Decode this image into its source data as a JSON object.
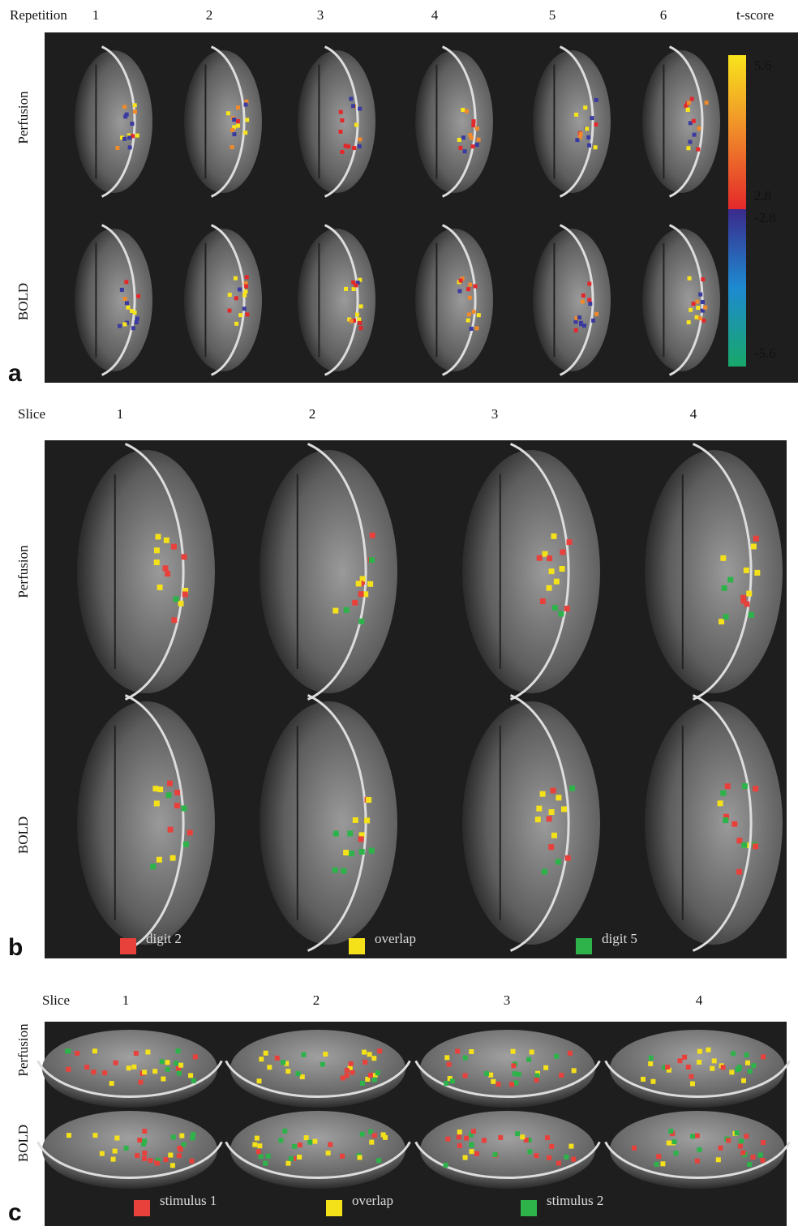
{
  "panel_a": {
    "label": "a",
    "column_title": "Repetition",
    "columns": [
      "1",
      "2",
      "3",
      "4",
      "5",
      "6"
    ],
    "rows": [
      "Perfusion",
      "BOLD"
    ],
    "colorbar": {
      "title": "t-score",
      "ticks": [
        "5.6",
        "2.8",
        "-2.8",
        "-5.6"
      ]
    }
  },
  "panel_b": {
    "label": "b",
    "column_title": "Slice",
    "columns": [
      "1",
      "2",
      "3",
      "4"
    ],
    "rows": [
      "Perfusion",
      "BOLD"
    ],
    "legend": [
      {
        "label": "digit 2",
        "color": "#e8413c"
      },
      {
        "label": "overlap",
        "color": "#f5e11a"
      },
      {
        "label": "digit 5",
        "color": "#2db34a"
      }
    ]
  },
  "panel_c": {
    "label": "c",
    "column_title": "Slice",
    "columns": [
      "1",
      "2",
      "3",
      "4"
    ],
    "rows": [
      "Perfusion",
      "BOLD"
    ],
    "legend": [
      {
        "label": "stimulus 1",
        "color": "#e8413c"
      },
      {
        "label": "overlap",
        "color": "#f5e11a"
      },
      {
        "label": "stimulus 2",
        "color": "#2db34a"
      }
    ]
  }
}
